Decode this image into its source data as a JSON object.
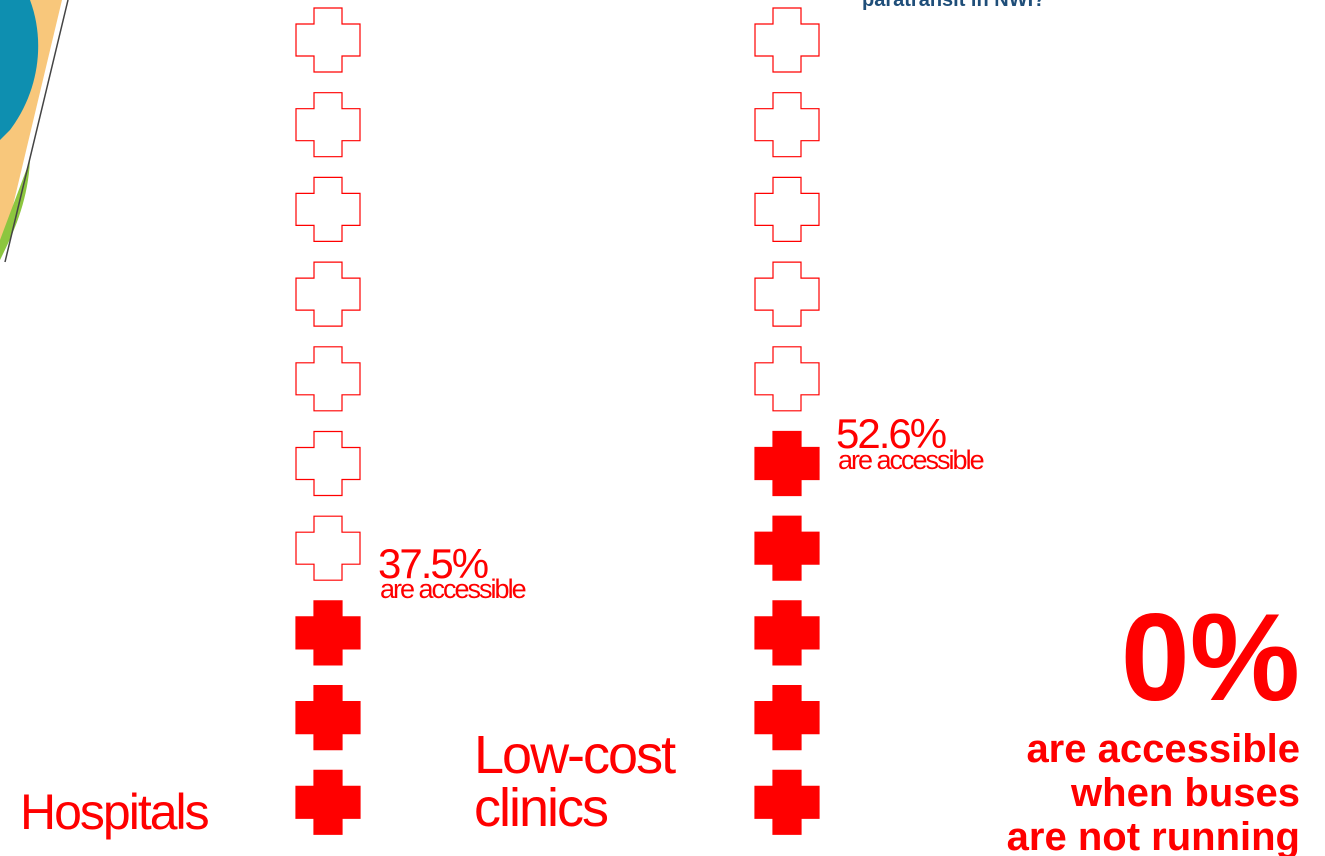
{
  "header": {
    "title": "paratransit in NWI?"
  },
  "hospitals": {
    "label": "Hospitals",
    "percent": "37.5%",
    "caption": "are accessible"
  },
  "clinics": {
    "label_lines": [
      "Low-cost",
      "clinics"
    ],
    "percent": "52.6%",
    "caption": "are accessible"
  },
  "buses": {
    "percent": "0%",
    "caption_lines": [
      "are accessible",
      "when buses",
      "are not running"
    ]
  }
}
